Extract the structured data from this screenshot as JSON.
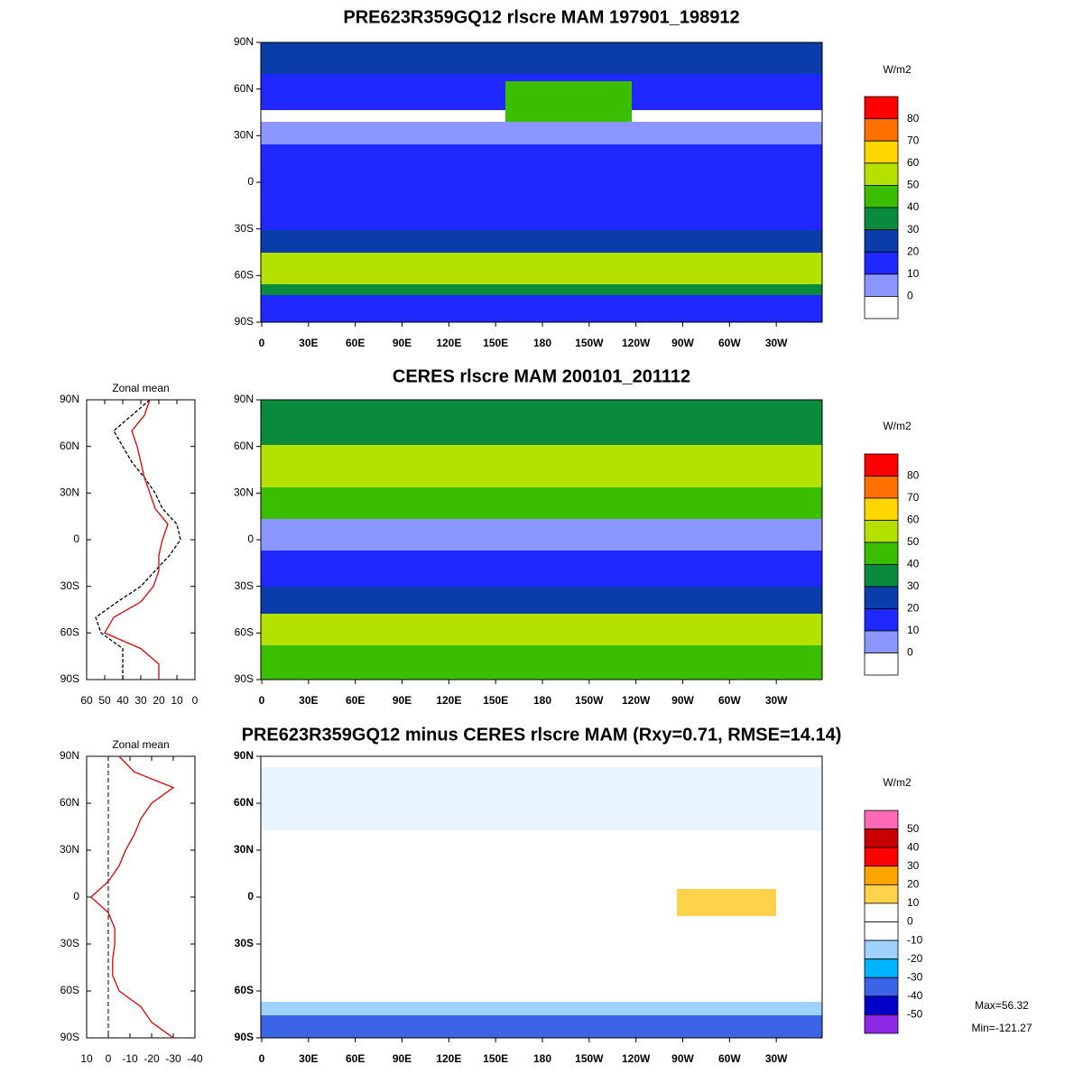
{
  "panels": [
    {
      "title": "PRE623R359GQ12 rlscre MAM 197901_198912",
      "units": "W/m2",
      "lat_ticks": [
        "90N",
        "60N",
        "30N",
        "0",
        "30S",
        "60S",
        "90S"
      ],
      "lon_ticks": [
        "0",
        "30E",
        "60E",
        "90E",
        "120E",
        "150E",
        "180",
        "150W",
        "120W",
        "90W",
        "60W",
        "30W"
      ],
      "colorbar": {
        "labels": [
          "80",
          "70",
          "60",
          "50",
          "40",
          "30",
          "20",
          "10",
          "0"
        ],
        "colors": [
          "#ff0000",
          "#ff7000",
          "#ffd700",
          "#b4e100",
          "#3cbe00",
          "#0a8a3c",
          "#0a3caa",
          "#1e28ff",
          "#8c96ff",
          "#ffffff"
        ]
      }
    },
    {
      "title": "CERES rlscre MAM 200101_201112",
      "units": "W/m2",
      "lat_ticks": [
        "90N",
        "60N",
        "30N",
        "0",
        "30S",
        "60S",
        "90S"
      ],
      "lon_ticks": [
        "0",
        "30E",
        "60E",
        "90E",
        "120E",
        "150E",
        "180",
        "150W",
        "120W",
        "90W",
        "60W",
        "30W"
      ],
      "colorbar": {
        "labels": [
          "80",
          "70",
          "60",
          "50",
          "40",
          "30",
          "20",
          "10",
          "0"
        ],
        "colors": [
          "#ff0000",
          "#ff7000",
          "#ffd700",
          "#b4e100",
          "#3cbe00",
          "#0a8a3c",
          "#0a3caa",
          "#1e28ff",
          "#8c96ff",
          "#ffffff"
        ]
      }
    },
    {
      "title": "PRE623R359GQ12 minus CERES rlscre MAM (Rxy=0.71, RMSE=14.14)",
      "units": "W/m2",
      "lat_ticks": [
        "90N",
        "60N",
        "30N",
        "0",
        "30S",
        "60S",
        "90S"
      ],
      "lon_ticks": [
        "0",
        "30E",
        "60E",
        "90E",
        "120E",
        "150E",
        "180",
        "150W",
        "120W",
        "90W",
        "60W",
        "30W"
      ],
      "colorbar": {
        "labels": [
          "50",
          "40",
          "30",
          "20",
          "10",
          "0",
          "-10",
          "-20",
          "-30",
          "-40",
          "-50"
        ],
        "colors": [
          "#ff69b4",
          "#c80000",
          "#ff0000",
          "#ffa500",
          "#ffd24b",
          "#ffffff",
          "#ffffff",
          "#a0d2ff",
          "#00b4ff",
          "#3c64e6",
          "#0000c8",
          "#8c28e6"
        ]
      }
    }
  ],
  "stats": {
    "max": "Max=56.32",
    "min": "Min=-121.27"
  },
  "chart_data": [
    {
      "type": "line",
      "title": "Zonal mean",
      "ylim": [
        -90,
        90
      ],
      "yticks": [
        {
          "value": 90,
          "label": "90N"
        },
        {
          "value": 60,
          "label": "60N"
        },
        {
          "value": 30,
          "label": "30N"
        },
        0,
        {
          "value": -30,
          "label": "30S"
        },
        {
          "value": -60,
          "label": "60S"
        },
        {
          "value": -90,
          "label": "90S"
        }
      ],
      "xlim": [
        60,
        0
      ],
      "xticks": [
        60,
        50,
        40,
        30,
        20,
        10,
        0
      ],
      "y": [
        90,
        80,
        70,
        60,
        50,
        40,
        30,
        20,
        10,
        0,
        -10,
        -20,
        -30,
        -40,
        -50,
        -60,
        -70,
        -80,
        -90
      ],
      "series": [
        {
          "color": "#000000",
          "dash": true,
          "values": [
            25,
            35,
            45,
            40,
            35,
            28,
            22,
            18,
            10,
            8,
            14,
            22,
            30,
            43,
            55,
            52,
            40,
            40,
            40
          ]
        },
        {
          "color": "#e00000",
          "dash": false,
          "values": [
            25,
            28,
            35,
            32,
            30,
            28,
            25,
            22,
            15,
            18,
            20,
            20,
            23,
            30,
            45,
            50,
            30,
            20,
            20
          ]
        }
      ]
    },
    {
      "type": "line",
      "title": "Zonal mean",
      "ylim": [
        -90,
        90
      ],
      "yticks": [
        {
          "value": 90,
          "label": "90N"
        },
        {
          "value": 60,
          "label": "60N"
        },
        {
          "value": 30,
          "label": "30N"
        },
        0,
        {
          "value": -30,
          "label": "30S"
        },
        {
          "value": -60,
          "label": "60S"
        },
        {
          "value": -90,
          "label": "90S"
        }
      ],
      "xlim": [
        10,
        -40
      ],
      "xticks": [
        10,
        0,
        -10,
        -20,
        -30,
        -40
      ],
      "vline": 0,
      "y": [
        90,
        80,
        70,
        60,
        50,
        40,
        30,
        20,
        10,
        0,
        -10,
        -20,
        -30,
        -40,
        -50,
        -60,
        -70,
        -80,
        -90
      ],
      "series": [
        {
          "color": "#e00000",
          "dash": false,
          "values": [
            -5,
            -12,
            -30,
            -20,
            -15,
            -12,
            -8,
            -5,
            0,
            8,
            0,
            -3,
            -3,
            -2,
            -2,
            -5,
            -15,
            -20,
            -30
          ]
        }
      ]
    }
  ]
}
